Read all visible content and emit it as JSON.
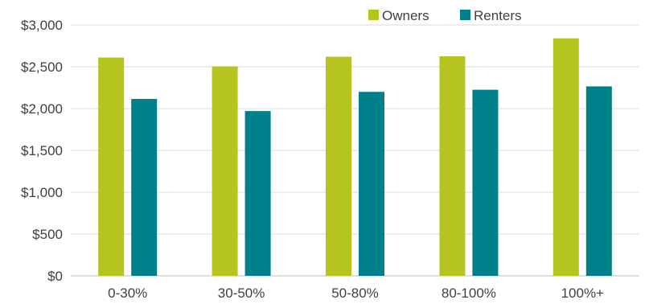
{
  "chart_data": {
    "type": "bar",
    "categories": [
      "0-30%",
      "30-50%",
      "50-80%",
      "80-100%",
      "100%+"
    ],
    "series": [
      {
        "name": "Owners",
        "color": "#b5c41f",
        "values": [
          2610,
          2505,
          2620,
          2625,
          2840
        ]
      },
      {
        "name": "Renters",
        "color": "#00808a",
        "values": [
          2115,
          1970,
          2200,
          2225,
          2265
        ]
      }
    ],
    "ylim": [
      0,
      3000
    ],
    "yticks": [
      "$0",
      "$500",
      "$1,000",
      "$1,500",
      "$2,000",
      "$2,500",
      "$3,000"
    ],
    "ytick_values": [
      0,
      500,
      1000,
      1500,
      2000,
      2500,
      3000
    ],
    "grid": true,
    "legend_position": "top-right",
    "title": "",
    "xlabel": "",
    "ylabel": ""
  }
}
